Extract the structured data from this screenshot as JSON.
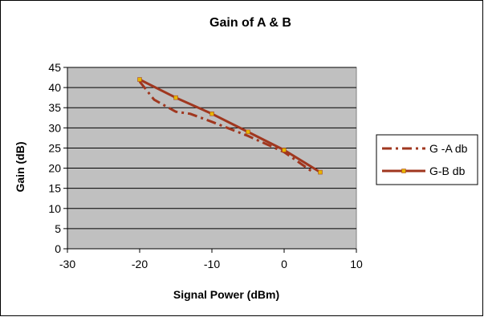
{
  "chart_data": {
    "type": "line",
    "title": "Gain of A & B",
    "xlabel": "Signal Power (dBm)",
    "ylabel": "Gain  (dB)",
    "xlim": [
      -30,
      10
    ],
    "ylim": [
      0,
      45
    ],
    "x_ticks": [
      "-30",
      "-20",
      "-10",
      "0",
      "10"
    ],
    "y_ticks": [
      "0",
      "5",
      "10",
      "15",
      "20",
      "25",
      "30",
      "35",
      "40",
      "45"
    ],
    "grid": true,
    "plot_background": "#c0c0c0",
    "legend_position": "right",
    "series": [
      {
        "name": "G -A db",
        "color": "#a0371f",
        "style": "dashed",
        "x": [
          -20,
          -18,
          -15,
          -13,
          -10,
          -5,
          0,
          2,
          4
        ],
        "y": [
          41.5,
          37,
          34,
          33.5,
          31.5,
          28,
          24,
          21.5,
          19
        ]
      },
      {
        "name": "G-B db",
        "color": "#a0371f",
        "marker_color": "#e6b400",
        "style": "solid",
        "x": [
          -20,
          -15,
          -10,
          -5,
          0,
          5
        ],
        "y": [
          42,
          37.5,
          33.5,
          29,
          24.5,
          19
        ]
      }
    ]
  }
}
